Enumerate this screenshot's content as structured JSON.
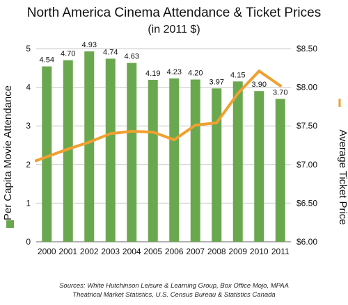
{
  "chart_data": {
    "type": "bar",
    "title": "North America Cinema Attendance & Ticket Prices",
    "subtitle": "(in 2011 $)",
    "categories": [
      "2000",
      "2001",
      "2002",
      "2003",
      "2004",
      "2005",
      "2006",
      "2007",
      "2008",
      "2009",
      "2010",
      "2011"
    ],
    "series": [
      {
        "name": "Per Capita Movie Attendance",
        "type": "bar",
        "axis": "left",
        "color": "#6aa84f",
        "values": [
          4.54,
          4.7,
          4.93,
          4.74,
          4.63,
          4.19,
          4.23,
          4.2,
          3.97,
          4.15,
          3.9,
          3.7
        ],
        "data_labels": [
          "4.54",
          "4.70",
          "4.93",
          "4.74",
          "4.63",
          "4.19",
          "4.23",
          "4.20",
          "3.97",
          "4.15",
          "3.90",
          "3.70"
        ]
      },
      {
        "name": "Average Ticket Price",
        "type": "line",
        "axis": "right",
        "color": "#f0a030",
        "values": [
          7.05,
          7.2,
          7.29,
          7.4,
          7.43,
          7.42,
          7.32,
          7.51,
          7.54,
          7.92,
          8.21,
          8.02
        ]
      }
    ],
    "left_axis": {
      "label": "Per Capita Movie Attendance",
      "ylim": [
        0,
        5
      ],
      "ticks": [
        "0",
        "1",
        "2",
        "3",
        "4",
        "5"
      ]
    },
    "right_axis": {
      "label": "Average Ticket Price",
      "ylim": [
        6.0,
        8.5
      ],
      "ticks": [
        "$6.00",
        "$6.50",
        "$7.00",
        "$7.50",
        "$8.00",
        "$8.50"
      ]
    },
    "grid": "horizontal",
    "legend": "along axes",
    "sources": [
      "Sources:  White Hutchinson Leisure & Learning Group, Box Office Mojo, MPAA",
      "Theatrical Market Statistics, U.S. Census Bureau & Statistics Canada"
    ]
  }
}
